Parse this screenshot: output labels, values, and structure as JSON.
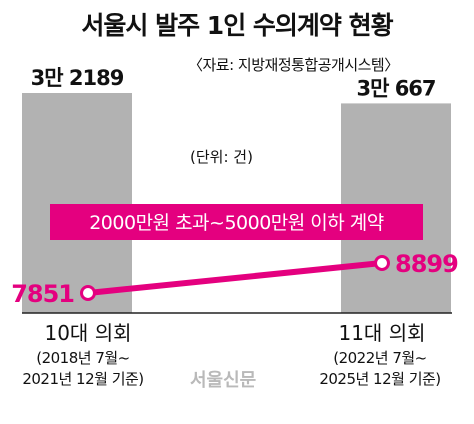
{
  "title": "서울시 발주 1인 수의계약 현황",
  "source": "〈자료: 지방재정통합공개시스템〉",
  "unit": "(단위: 건)",
  "watermark": "서울신문",
  "chart_data": {
    "type": "bar",
    "categories": [
      "10대 의회",
      "11대 의회"
    ],
    "periods": [
      [
        "(2018년 7월~",
        "2021년 12월 기준)"
      ],
      [
        "(2022년 7월~",
        "2025년 12월 기준)"
      ]
    ],
    "series": [
      {
        "values": [
          32189,
          30667
        ],
        "labels": [
          "3만 2189",
          "3만 667"
        ],
        "color": "#b2b2b2"
      },
      {
        "name": "2000만원 초과~5000만원 이하 계약",
        "type": "line",
        "values": [
          7851,
          8899
        ],
        "labels": [
          "7851",
          "8899"
        ],
        "color": "#e4007f"
      }
    ],
    "unit": "건",
    "grid": false
  }
}
